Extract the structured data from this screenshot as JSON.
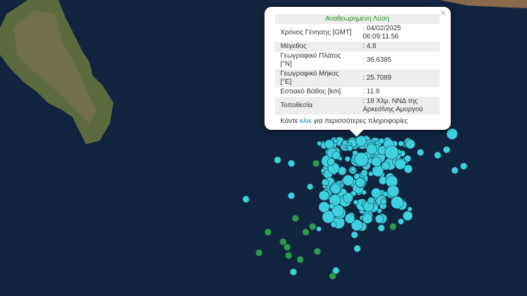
{
  "popup": {
    "title": "Αναθεωρημένη Λύση",
    "rows": [
      {
        "label": "Χρόνος Γένησης [GMT]",
        "value": ": 04/02/2025 06:09:11.56"
      },
      {
        "label": "Μέγεθος",
        "value": ": 4.8"
      },
      {
        "label": "Γεωγραφικό Πλάτος [°N]",
        "value": ": 36.6385"
      },
      {
        "label": "Γεωγραφικό Μήκος [°E]",
        "value": ": 25.7089"
      },
      {
        "label": "Εστιακό Βάθος [km]",
        "value": ": 11.9"
      },
      {
        "label": "Τοποθεσία",
        "value": ": 18 Χλμ. ΝΝΔ της Αρκεσίνης Αμοργού"
      }
    ],
    "footer_pre": "Κάντε",
    "footer_link": "κλικ",
    "footer_post": "για περισσότερες πληροφορίες",
    "close_icon": "close-icon"
  },
  "colors": {
    "sea": "#0f2240",
    "marker_recent": "#3fd0e0",
    "marker_older": "#2e9a4a"
  }
}
